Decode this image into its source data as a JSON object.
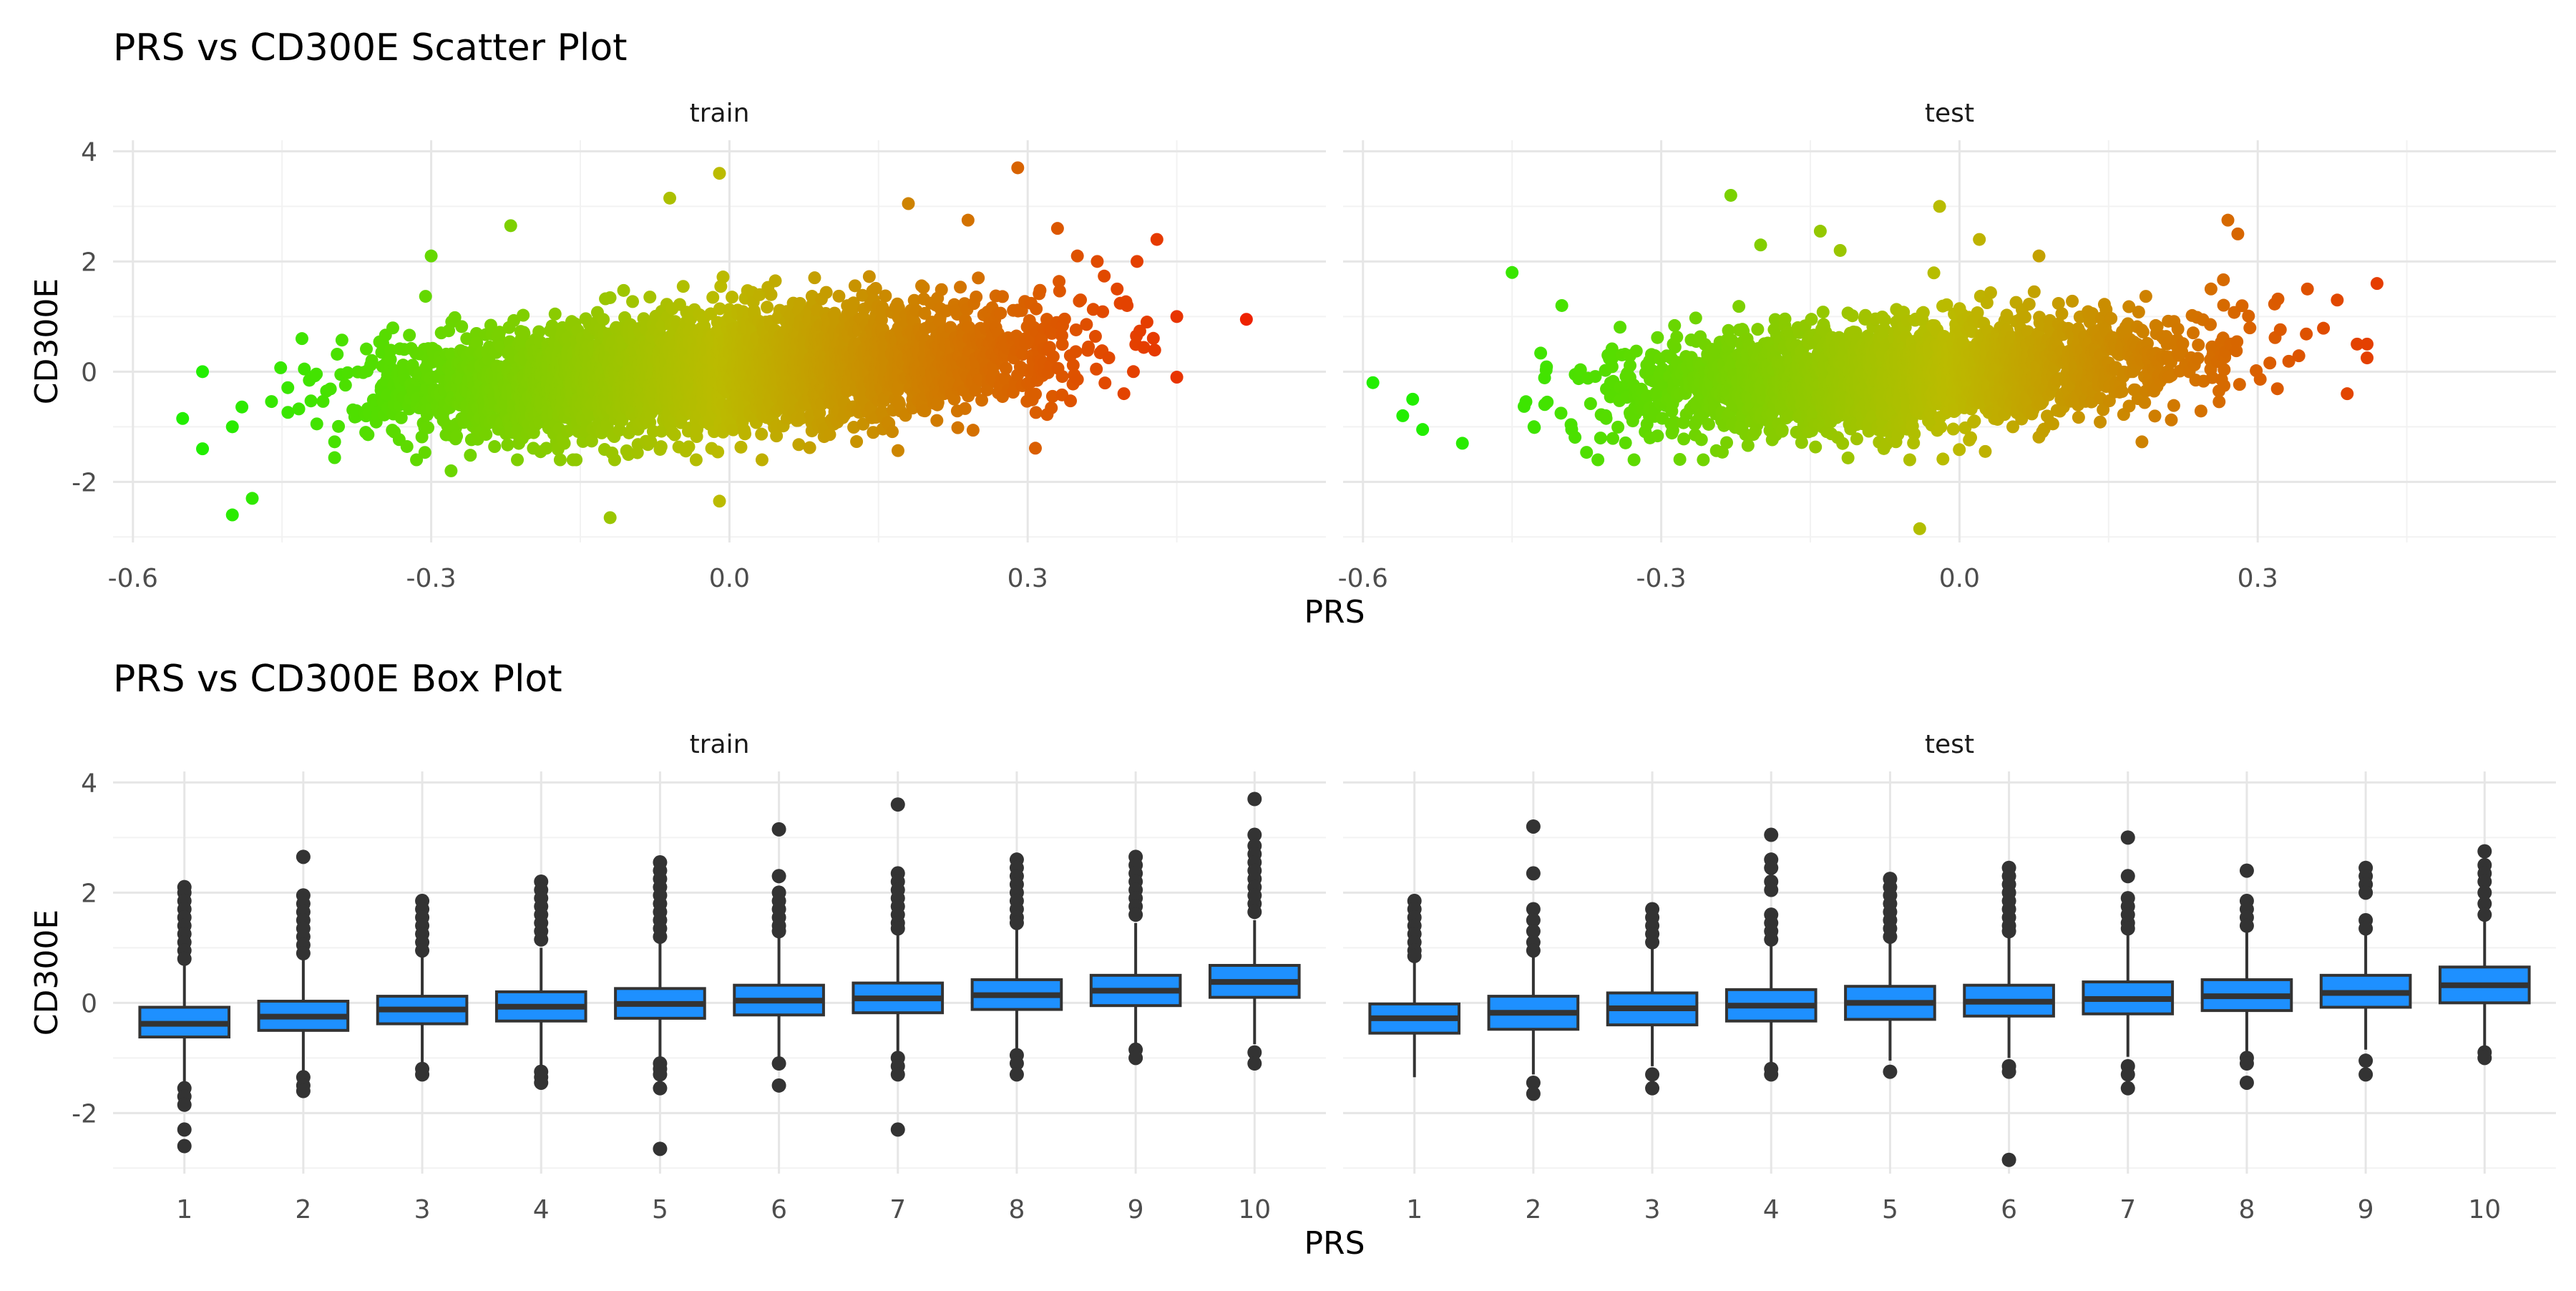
{
  "titles": {
    "scatter": "PRS vs CD300E Scatter Plot",
    "box": "PRS vs CD300E Box Plot"
  },
  "colors": {
    "low": "#22ee00",
    "mid": "#bbbb00",
    "high": "#ee2200",
    "box_fill": "#1e90ff",
    "box_line": "#333333",
    "outlier": "#333333"
  },
  "chart_data": [
    {
      "type": "scatter",
      "title": "PRS vs CD300E Scatter Plot",
      "xlabel": "PRS",
      "ylabel": "CD300E",
      "xlim": [
        -0.62,
        0.6
      ],
      "ylim": [
        -3.1,
        4.2
      ],
      "x_ticks": [
        "-0.6",
        "-0.3",
        "0.0",
        "0.3"
      ],
      "x_tick_values": [
        -0.6,
        -0.3,
        0.0,
        0.3
      ],
      "y_ticks": [
        "-2",
        "0",
        "2",
        "4"
      ],
      "y_tick_values": [
        -2,
        0,
        2,
        4
      ],
      "trend": {
        "slope": 1.6,
        "intercept": 0.0
      },
      "facets": [
        {
          "label": "train",
          "cloud": {
            "x_range": [
              -0.48,
              0.45
            ],
            "n": 4200,
            "sd": 0.33
          },
          "points": [
            [
              -0.55,
              -0.85
            ],
            [
              -0.53,
              -1.4
            ],
            [
              -0.53,
              0.0
            ],
            [
              -0.5,
              -1.0
            ],
            [
              -0.5,
              -2.6
            ],
            [
              -0.48,
              -2.3
            ],
            [
              -0.43,
              0.6
            ],
            [
              -0.3,
              2.1
            ],
            [
              -0.28,
              -1.8
            ],
            [
              -0.22,
              2.65
            ],
            [
              -0.12,
              -2.65
            ],
            [
              -0.06,
              3.15
            ],
            [
              -0.01,
              3.6
            ],
            [
              -0.01,
              -2.35
            ],
            [
              0.18,
              3.05
            ],
            [
              0.24,
              2.75
            ],
            [
              0.29,
              3.7
            ],
            [
              0.33,
              2.6
            ],
            [
              0.35,
              2.1
            ],
            [
              0.37,
              2.0
            ],
            [
              0.39,
              1.5
            ],
            [
              0.4,
              1.2
            ],
            [
              0.41,
              2.0
            ],
            [
              0.42,
              0.9
            ],
            [
              0.43,
              2.4
            ],
            [
              0.45,
              1.0
            ],
            [
              0.45,
              -0.1
            ],
            [
              0.52,
              0.95
            ]
          ]
        },
        {
          "label": "test",
          "cloud": {
            "x_range": [
              -0.47,
              0.38
            ],
            "n": 2600,
            "sd": 0.31
          },
          "points": [
            [
              -0.59,
              -0.2
            ],
            [
              -0.56,
              -0.8
            ],
            [
              -0.55,
              -0.5
            ],
            [
              -0.54,
              -1.05
            ],
            [
              -0.5,
              -1.3
            ],
            [
              -0.45,
              1.8
            ],
            [
              -0.4,
              1.2
            ],
            [
              -0.23,
              3.2
            ],
            [
              -0.2,
              2.3
            ],
            [
              -0.14,
              2.55
            ],
            [
              -0.12,
              2.2
            ],
            [
              -0.05,
              -1.6
            ],
            [
              -0.02,
              3.0
            ],
            [
              -0.04,
              -2.85
            ],
            [
              0.02,
              2.4
            ],
            [
              0.08,
              2.1
            ],
            [
              0.27,
              2.75
            ],
            [
              0.28,
              2.5
            ],
            [
              0.35,
              1.5
            ],
            [
              0.38,
              1.3
            ],
            [
              0.39,
              -0.4
            ],
            [
              0.4,
              0.5
            ],
            [
              0.41,
              0.25
            ],
            [
              0.41,
              0.5
            ],
            [
              0.42,
              1.6
            ]
          ]
        }
      ]
    },
    {
      "type": "box",
      "title": "PRS vs CD300E Box Plot",
      "xlabel": "PRS",
      "ylabel": "CD300E",
      "ylim": [
        -3.1,
        4.2
      ],
      "categories": [
        "1",
        "2",
        "3",
        "4",
        "5",
        "6",
        "7",
        "8",
        "9",
        "10"
      ],
      "y_ticks": [
        "-2",
        "0",
        "2",
        "4"
      ],
      "y_tick_values": [
        -2,
        0,
        2,
        4
      ],
      "facets": [
        {
          "label": "train",
          "boxes": [
            {
              "q1": -0.62,
              "median": -0.38,
              "q3": -0.08,
              "lo": -1.45,
              "hi": 0.72,
              "out": [
                2.1,
                2.0,
                1.85,
                1.7,
                1.55,
                1.4,
                1.25,
                1.1,
                0.95,
                0.8,
                -1.55,
                -1.7,
                -1.85,
                -2.3,
                -2.6
              ]
            },
            {
              "q1": -0.5,
              "median": -0.25,
              "q3": 0.03,
              "lo": -1.3,
              "hi": 0.8,
              "out": [
                2.65,
                1.95,
                1.8,
                1.65,
                1.5,
                1.35,
                1.2,
                1.05,
                0.9,
                -1.35,
                -1.5,
                -1.6
              ]
            },
            {
              "q1": -0.38,
              "median": -0.12,
              "q3": 0.12,
              "lo": -1.1,
              "hi": 0.9,
              "out": [
                1.85,
                1.7,
                1.55,
                1.4,
                1.25,
                1.1,
                0.95,
                -1.2,
                -1.3
              ]
            },
            {
              "q1": -0.33,
              "median": -0.07,
              "q3": 0.2,
              "lo": -1.15,
              "hi": 1.0,
              "out": [
                2.2,
                2.05,
                1.9,
                1.75,
                1.6,
                1.45,
                1.3,
                1.15,
                -1.25,
                -1.35,
                -1.45
              ]
            },
            {
              "q1": -0.28,
              "median": -0.02,
              "q3": 0.26,
              "lo": -1.05,
              "hi": 1.1,
              "out": [
                2.55,
                2.4,
                2.25,
                2.1,
                1.95,
                1.8,
                1.65,
                1.5,
                1.35,
                1.2,
                -1.1,
                -1.2,
                -1.3,
                -1.55,
                -2.65
              ]
            },
            {
              "q1": -0.22,
              "median": 0.04,
              "q3": 0.32,
              "lo": -1.0,
              "hi": 1.2,
              "out": [
                3.15,
                2.3,
                2.0,
                1.85,
                1.7,
                1.55,
                1.4,
                1.3,
                -1.1,
                -1.5
              ]
            },
            {
              "q1": -0.18,
              "median": 0.08,
              "q3": 0.36,
              "lo": -0.95,
              "hi": 1.25,
              "out": [
                3.6,
                2.35,
                2.2,
                2.05,
                1.9,
                1.75,
                1.6,
                1.45,
                1.35,
                -1.0,
                -1.15,
                -1.3,
                -2.3
              ]
            },
            {
              "q1": -0.12,
              "median": 0.14,
              "q3": 0.42,
              "lo": -0.9,
              "hi": 1.35,
              "out": [
                2.6,
                2.45,
                2.3,
                2.15,
                2.0,
                1.85,
                1.7,
                1.55,
                1.45,
                -0.95,
                -1.1,
                -1.3
              ]
            },
            {
              "q1": -0.05,
              "median": 0.22,
              "q3": 0.5,
              "lo": -0.82,
              "hi": 1.45,
              "out": [
                2.65,
                2.5,
                2.35,
                2.2,
                2.05,
                1.9,
                1.75,
                1.6,
                -0.85,
                -1.0
              ]
            },
            {
              "q1": 0.1,
              "median": 0.38,
              "q3": 0.68,
              "lo": -0.75,
              "hi": 1.5,
              "out": [
                3.7,
                3.05,
                2.85,
                2.7,
                2.55,
                2.4,
                2.25,
                2.1,
                1.95,
                1.8,
                1.65,
                -0.9,
                -1.1
              ]
            }
          ]
        },
        {
          "label": "test",
          "boxes": [
            {
              "q1": -0.55,
              "median": -0.28,
              "q3": -0.02,
              "lo": -1.35,
              "hi": 0.75,
              "out": [
                1.85,
                1.7,
                1.55,
                1.4,
                1.25,
                1.1,
                0.95,
                0.85
              ]
            },
            {
              "q1": -0.48,
              "median": -0.18,
              "q3": 0.12,
              "lo": -1.3,
              "hi": 0.9,
              "out": [
                3.2,
                2.35,
                1.7,
                1.5,
                1.3,
                1.1,
                0.95,
                -1.45,
                -1.65
              ]
            },
            {
              "q1": -0.4,
              "median": -0.1,
              "q3": 0.18,
              "lo": -1.15,
              "hi": 1.0,
              "out": [
                1.7,
                1.55,
                1.4,
                1.25,
                1.1,
                -1.3,
                -1.55
              ]
            },
            {
              "q1": -0.33,
              "median": -0.05,
              "q3": 0.24,
              "lo": -1.1,
              "hi": 1.1,
              "out": [
                3.05,
                2.6,
                2.45,
                2.2,
                2.05,
                1.6,
                1.45,
                1.3,
                1.15,
                -1.2,
                -1.3
              ]
            },
            {
              "q1": -0.3,
              "median": 0.0,
              "q3": 0.3,
              "lo": -1.05,
              "hi": 1.15,
              "out": [
                2.25,
                2.1,
                1.95,
                1.8,
                1.65,
                1.5,
                1.35,
                1.2,
                -1.25
              ]
            },
            {
              "q1": -0.24,
              "median": 0.02,
              "q3": 0.32,
              "lo": -1.0,
              "hi": 1.2,
              "out": [
                2.45,
                2.3,
                2.15,
                2.0,
                1.85,
                1.7,
                1.55,
                1.4,
                1.3,
                -1.15,
                -1.25,
                -2.85
              ]
            },
            {
              "q1": -0.2,
              "median": 0.07,
              "q3": 0.38,
              "lo": -0.98,
              "hi": 1.25,
              "out": [
                3.0,
                2.3,
                1.9,
                1.75,
                1.6,
                1.45,
                1.35,
                -1.15,
                -1.3,
                -1.55
              ]
            },
            {
              "q1": -0.14,
              "median": 0.12,
              "q3": 0.42,
              "lo": -0.9,
              "hi": 1.3,
              "out": [
                2.4,
                1.85,
                1.7,
                1.55,
                1.4,
                -1.0,
                -1.1,
                -1.45
              ]
            },
            {
              "q1": -0.08,
              "median": 0.18,
              "q3": 0.5,
              "lo": -0.85,
              "hi": 1.4,
              "out": [
                2.45,
                2.3,
                2.15,
                2.0,
                1.5,
                1.35,
                -1.05,
                -1.3
              ]
            },
            {
              "q1": 0.0,
              "median": 0.32,
              "q3": 0.65,
              "lo": -0.8,
              "hi": 1.5,
              "out": [
                2.75,
                2.5,
                2.35,
                2.2,
                2.0,
                1.8,
                1.6,
                -0.9,
                -1.0
              ]
            }
          ]
        }
      ]
    }
  ]
}
